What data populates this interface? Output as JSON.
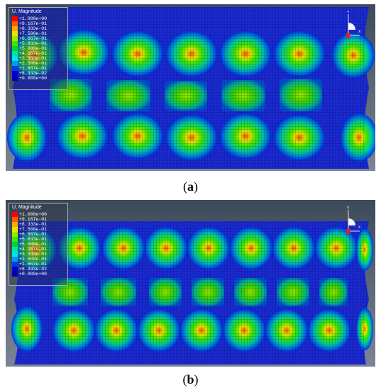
{
  "panels": [
    {
      "id": "a",
      "caption_open": "(",
      "caption_letter": "a",
      "caption_close": ")",
      "legend_title": "U, Magnitude",
      "legend_values": [
        "+1.000e+00",
        "+9.167e-01",
        "+8.333e-01",
        "+7.500e-01",
        "+6.667e-01",
        "+5.833e-01",
        "+5.000e-01",
        "+4.167e-01",
        "+3.333e-01",
        "+2.500e-01",
        "+1.667e-01",
        "+8.333e-02",
        "+0.000e+00"
      ]
    },
    {
      "id": "b",
      "caption_open": "(",
      "caption_letter": "b",
      "caption_close": ")",
      "legend_title": "U, Magnitude",
      "legend_values": [
        "+1.000e+00",
        "+9.167e-01",
        "+8.333e-01",
        "+7.500e-01",
        "+6.667e-01",
        "+5.833e-01",
        "+5.000e-01",
        "+4.167e-01",
        "+3.333e-01",
        "+2.500e-01",
        "+1.667e-01",
        "+8.333e-02",
        "+0.000e+00"
      ]
    }
  ],
  "legend_colors": [
    "#ff0000",
    "#ff5a00",
    "#ffaa00",
    "#e6e600",
    "#9ee600",
    "#3ce600",
    "#00d23c",
    "#00e69e",
    "#00e6e6",
    "#009ee6",
    "#003ce6",
    "#0000d2",
    "#0000b4"
  ],
  "triad_labels": {
    "y": "Y",
    "x": "X"
  }
}
